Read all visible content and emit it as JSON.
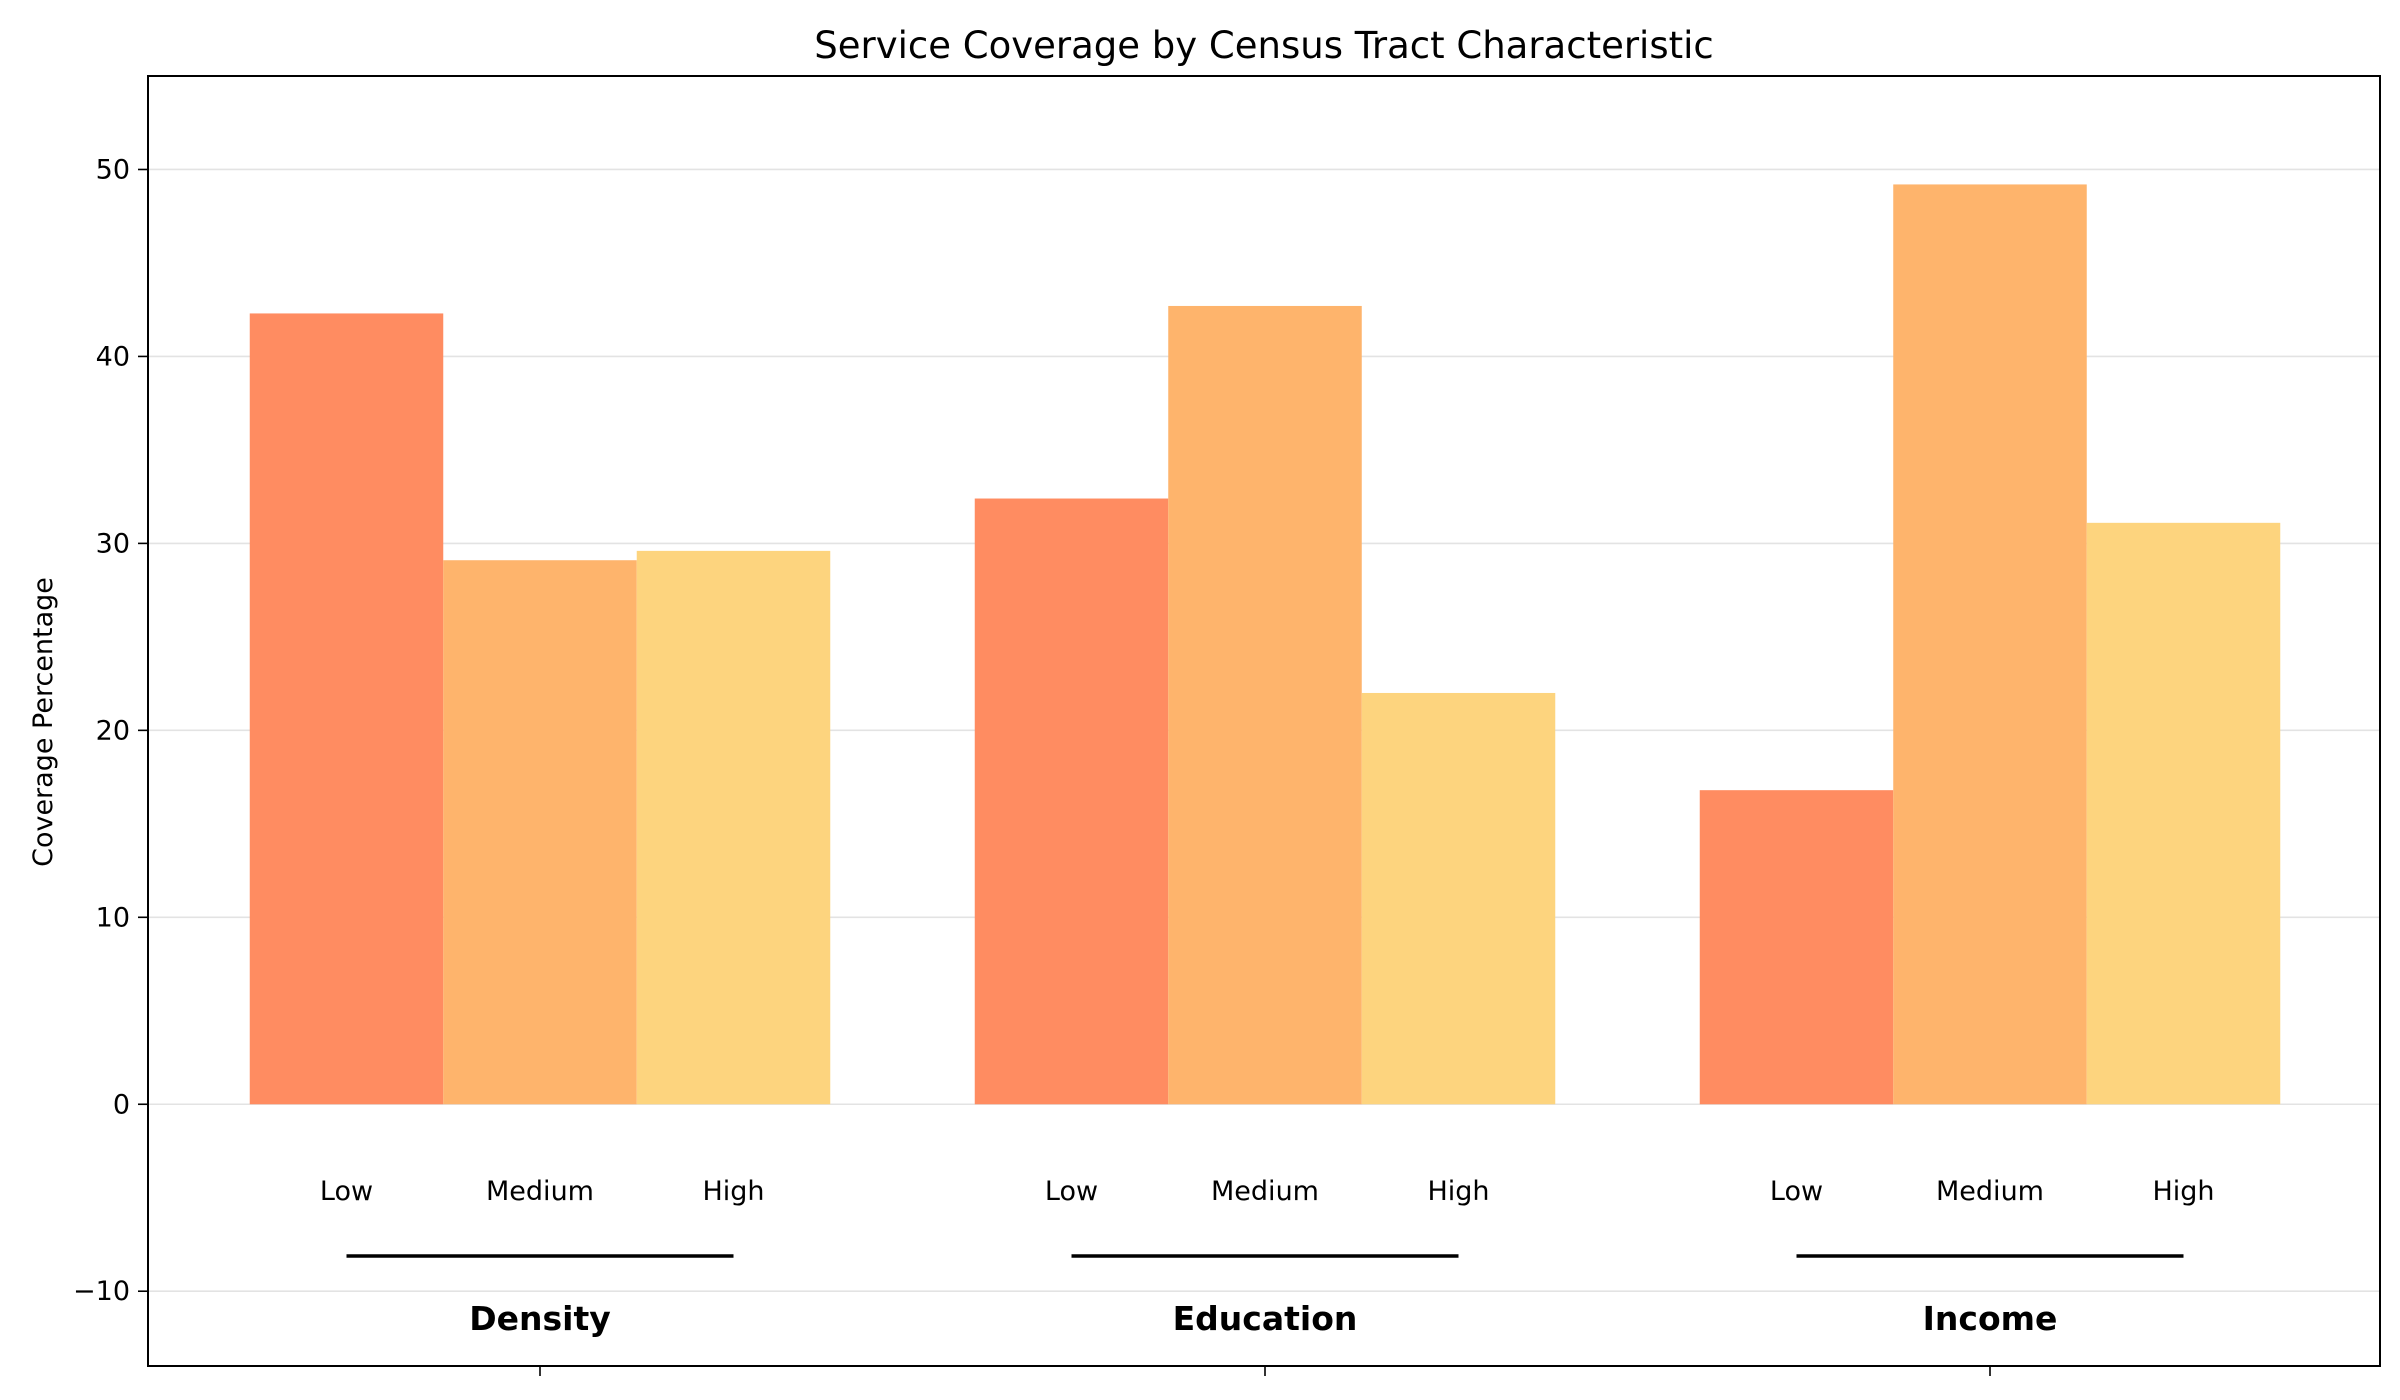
{
  "chart_data": {
    "type": "bar",
    "title": "Service Coverage by Census Tract Characteristic",
    "xlabel": "",
    "ylabel": "Coverage Percentage",
    "ylim": [
      -14,
      55
    ],
    "yticks": [
      -10,
      0,
      10,
      20,
      30,
      40,
      50
    ],
    "grid": true,
    "legend": "none",
    "categories": [
      "Density",
      "Education",
      "Income"
    ],
    "levels": [
      "Low",
      "Medium",
      "High"
    ],
    "colors": [
      "#ff8c61",
      "#feb46c",
      "#fdd47e"
    ],
    "values": [
      [
        42.3,
        29.1,
        29.6
      ],
      [
        32.4,
        42.7,
        22.0
      ],
      [
        16.8,
        49.2,
        31.1
      ]
    ]
  }
}
